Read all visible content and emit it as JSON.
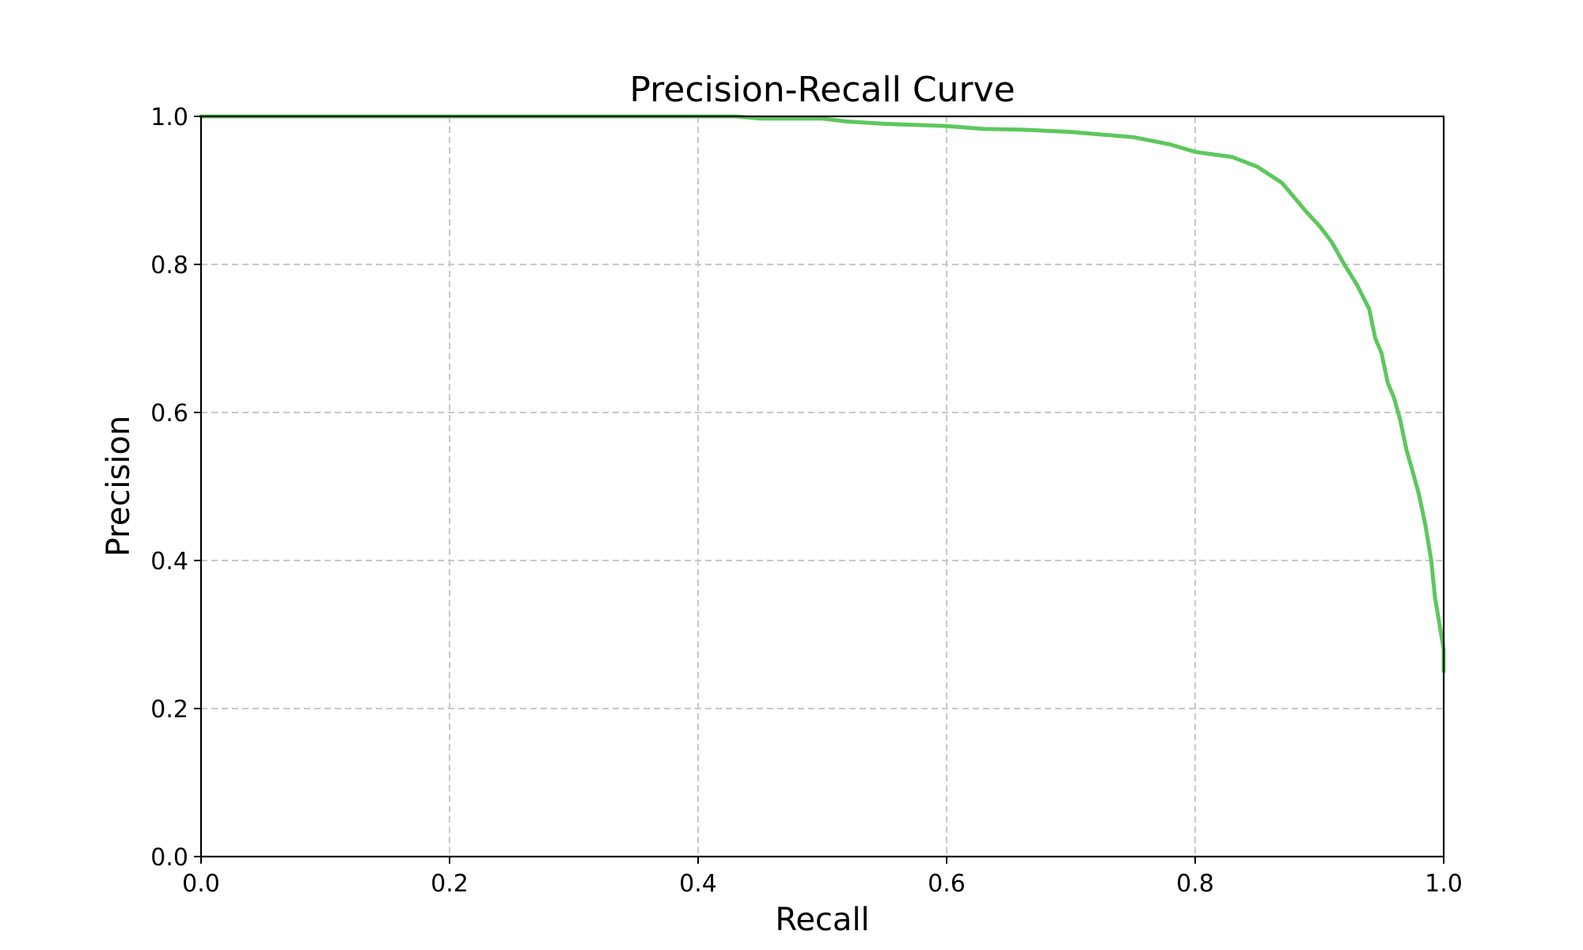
{
  "chart_data": {
    "type": "line",
    "title": "Precision-Recall Curve",
    "xlabel": "Recall",
    "ylabel": "Precision",
    "xlim": [
      0.0,
      1.0
    ],
    "ylim": [
      0.0,
      1.0
    ],
    "x_ticks": [
      "0.0",
      "0.2",
      "0.4",
      "0.6",
      "0.8",
      "1.0"
    ],
    "y_ticks": [
      "0.0",
      "0.2",
      "0.4",
      "0.6",
      "0.8",
      "1.0"
    ],
    "grid": true,
    "series": [
      {
        "color": "#5cc85c",
        "points": [
          [
            0.0,
            1.0
          ],
          [
            0.1,
            1.0
          ],
          [
            0.2,
            1.0
          ],
          [
            0.3,
            1.0
          ],
          [
            0.4,
            1.0
          ],
          [
            0.43,
            1.0
          ],
          [
            0.45,
            0.997
          ],
          [
            0.5,
            0.997
          ],
          [
            0.52,
            0.993
          ],
          [
            0.55,
            0.99
          ],
          [
            0.6,
            0.987
          ],
          [
            0.63,
            0.983
          ],
          [
            0.66,
            0.982
          ],
          [
            0.7,
            0.979
          ],
          [
            0.72,
            0.976
          ],
          [
            0.75,
            0.972
          ],
          [
            0.78,
            0.962
          ],
          [
            0.8,
            0.952
          ],
          [
            0.83,
            0.945
          ],
          [
            0.85,
            0.932
          ],
          [
            0.87,
            0.91
          ],
          [
            0.88,
            0.89
          ],
          [
            0.89,
            0.87
          ],
          [
            0.9,
            0.852
          ],
          [
            0.91,
            0.83
          ],
          [
            0.92,
            0.8
          ],
          [
            0.93,
            0.773
          ],
          [
            0.94,
            0.74
          ],
          [
            0.945,
            0.7
          ],
          [
            0.95,
            0.68
          ],
          [
            0.955,
            0.64
          ],
          [
            0.96,
            0.62
          ],
          [
            0.965,
            0.59
          ],
          [
            0.97,
            0.55
          ],
          [
            0.975,
            0.52
          ],
          [
            0.98,
            0.49
          ],
          [
            0.985,
            0.45
          ],
          [
            0.99,
            0.4
          ],
          [
            0.993,
            0.35
          ],
          [
            0.997,
            0.31
          ],
          [
            1.0,
            0.28
          ],
          [
            1.0,
            0.25
          ]
        ]
      }
    ]
  }
}
